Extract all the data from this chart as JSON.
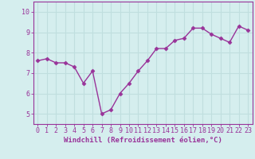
{
  "x": [
    0,
    1,
    2,
    3,
    4,
    5,
    6,
    7,
    8,
    9,
    10,
    11,
    12,
    13,
    14,
    15,
    16,
    17,
    18,
    19,
    20,
    21,
    22,
    23
  ],
  "y": [
    7.6,
    7.7,
    7.5,
    7.5,
    7.3,
    6.5,
    7.1,
    5.0,
    5.2,
    6.0,
    6.5,
    7.1,
    7.6,
    8.2,
    8.2,
    8.6,
    8.7,
    9.2,
    9.2,
    8.9,
    8.7,
    8.5,
    9.3,
    9.1
  ],
  "line_color": "#993399",
  "marker": "D",
  "marker_size": 2.5,
  "xlabel": "Windchill (Refroidissement éolien,°C)",
  "xlabel_fontsize": 6.5,
  "ylim": [
    4.5,
    10.5
  ],
  "xlim": [
    -0.5,
    23.5
  ],
  "yticks": [
    5,
    6,
    7,
    8,
    9,
    10
  ],
  "xticks": [
    0,
    1,
    2,
    3,
    4,
    5,
    6,
    7,
    8,
    9,
    10,
    11,
    12,
    13,
    14,
    15,
    16,
    17,
    18,
    19,
    20,
    21,
    22,
    23
  ],
  "bg_color": "#d5eeee",
  "grid_color": "#c0dede",
  "tick_fontsize": 6,
  "line_width": 1.0
}
